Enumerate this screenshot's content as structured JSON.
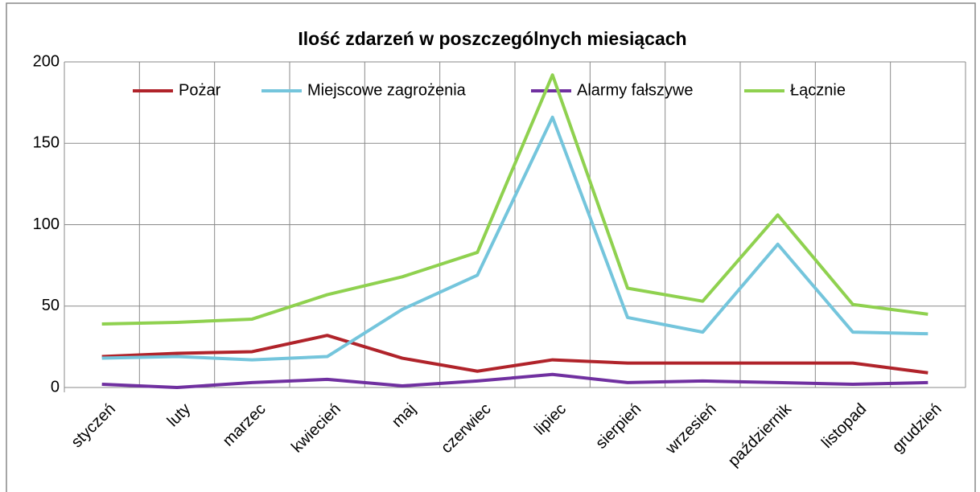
{
  "chart_data": {
    "type": "line",
    "title": "Ilość zdarzeń w poszczególnych miesiącach",
    "categories": [
      "styczeń",
      "luty",
      "marzec",
      "kwiecień",
      "maj",
      "czerwiec",
      "lipiec",
      "sierpień",
      "wrzesień",
      "październik",
      "listopad",
      "grudzień"
    ],
    "series": [
      {
        "name": "Pożar",
        "color": "#b0232a",
        "values": [
          19,
          21,
          22,
          32,
          18,
          10,
          17,
          15,
          15,
          15,
          15,
          9
        ]
      },
      {
        "name": "Miejscowe zagrożenia",
        "color": "#74c5dc",
        "values": [
          18,
          19,
          17,
          19,
          48,
          69,
          166,
          43,
          34,
          88,
          34,
          33
        ]
      },
      {
        "name": "Alarmy fałszywe",
        "color": "#7030a0",
        "values": [
          2,
          0,
          3,
          5,
          1,
          4,
          8,
          3,
          4,
          3,
          2,
          3
        ]
      },
      {
        "name": "Łącznie",
        "color": "#8fd14f",
        "values": [
          39,
          40,
          42,
          57,
          68,
          83,
          192,
          61,
          53,
          106,
          51,
          45
        ]
      }
    ],
    "ylim": [
      0,
      200
    ],
    "yticks": [
      0,
      50,
      100,
      150,
      200
    ],
    "grid": true,
    "legend": "top"
  }
}
